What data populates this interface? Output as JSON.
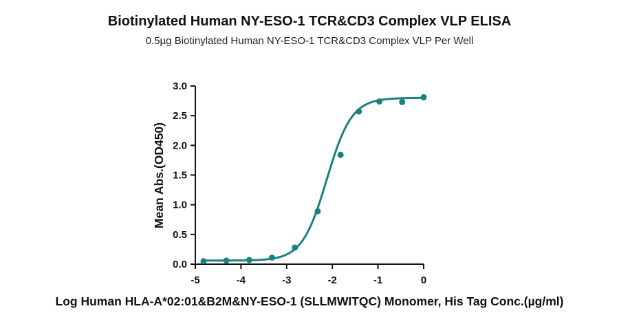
{
  "chart_data": {
    "type": "scatter",
    "title": "Biotinylated Human NY-ESO-1 TCR&CD3 Complex VLP ELISA",
    "subtitle": "0.5µg Biotinylated Human NY-ESO-1 TCR&CD3 Complex VLP Per Well",
    "xlabel": "Log Human HLA-A*02:01&B2M&NY-ESO-1 (SLLMWITQC) Monomer, His Tag Conc.(µg/ml)",
    "ylabel": "Mean Abs.(OD450)",
    "xlim": [
      -5,
      0
    ],
    "ylim": [
      0,
      3.0
    ],
    "x_ticks": [
      "-5",
      "-4",
      "-3",
      "-2",
      "-1",
      "0"
    ],
    "y_ticks": [
      "0.0",
      "0.5",
      "1.0",
      "1.5",
      "2.0",
      "2.5",
      "3.0"
    ],
    "grid": false,
    "legend": "none",
    "color": "#1a8080",
    "series": [
      {
        "x": [
          -4.82,
          -4.32,
          -3.82,
          -3.32,
          -2.82,
          -2.32,
          -1.82,
          -1.42,
          -0.97,
          -0.47,
          0.0
        ],
        "y": [
          0.05,
          0.06,
          0.07,
          0.11,
          0.28,
          0.89,
          1.84,
          2.57,
          2.74,
          2.73,
          2.81
        ]
      }
    ],
    "fit": {
      "model": "4PL",
      "bottom": 0.06,
      "top": 2.8,
      "log_ec50": -2.12,
      "hill": 1.6
    }
  }
}
